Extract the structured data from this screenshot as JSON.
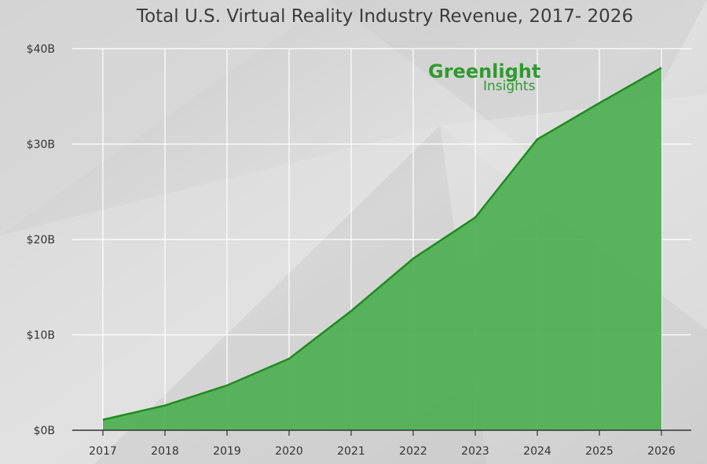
{
  "chart_data": {
    "type": "area",
    "title": "Total U.S. Virtual Reality Industry Revenue, 2017- 2026",
    "xlabel": "",
    "ylabel": "",
    "x": [
      "2017",
      "2018",
      "2019",
      "2020",
      "2021",
      "2022",
      "2023",
      "2024",
      "2025",
      "2026"
    ],
    "series": [
      {
        "values": [
          1.1,
          2.6,
          4.7,
          7.5,
          12.5,
          18.0,
          22.3,
          30.5,
          34.3,
          38.0
        ]
      }
    ],
    "ylim": [
      0,
      40
    ],
    "yticks": [
      0,
      10,
      20,
      30,
      40
    ],
    "ytick_labels": [
      "$0B",
      "$10B",
      "$20B",
      "$30B",
      "$40B"
    ],
    "grid": true,
    "colors": {
      "fill": "#4caf50",
      "line": "#1f8a1f",
      "grid": "#ffffff",
      "axis": "#333333"
    }
  },
  "logo": {
    "line1": "Greenlight",
    "line2": "Insights"
  }
}
